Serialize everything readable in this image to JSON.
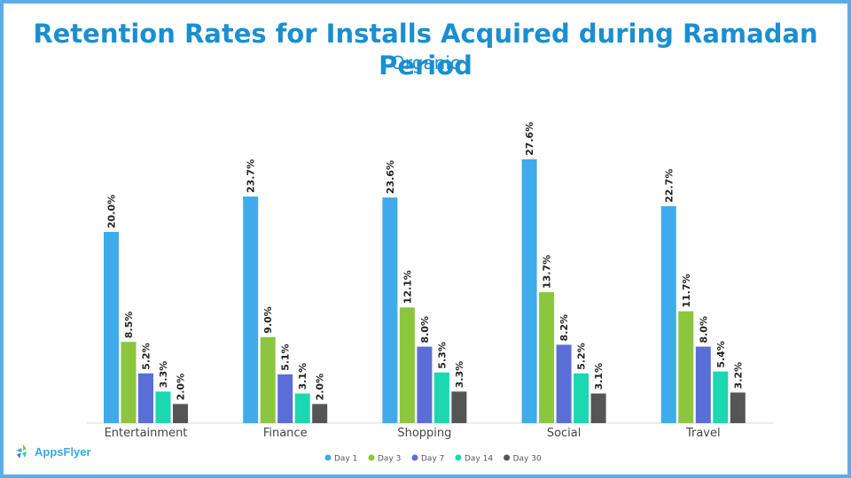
{
  "chart_data": {
    "type": "bar",
    "title": "Retention Rates for Installs Acquired during Ramadan Period",
    "subtitle": "Organic",
    "categories": [
      "Entertainment",
      "Finance",
      "Shopping",
      "Social",
      "Travel"
    ],
    "series": [
      {
        "name": "Day 1",
        "color": "#3fabea",
        "values": [
          20.0,
          23.7,
          23.6,
          27.6,
          22.7
        ]
      },
      {
        "name": "Day 3",
        "color": "#8cc63f",
        "values": [
          8.5,
          9.0,
          12.1,
          13.7,
          11.7
        ]
      },
      {
        "name": "Day 7",
        "color": "#5a6ed8",
        "values": [
          5.2,
          5.1,
          8.0,
          8.2,
          8.0
        ]
      },
      {
        "name": "Day 14",
        "color": "#1ad8b0",
        "values": [
          3.3,
          3.1,
          5.3,
          5.2,
          5.4
        ]
      },
      {
        "name": "Day 30",
        "color": "#555555",
        "values": [
          2.0,
          2.0,
          3.3,
          3.1,
          3.2
        ]
      }
    ],
    "value_format": "percent_one_decimal",
    "ylim": [
      0,
      30
    ],
    "grid": false,
    "legend": "bottom"
  },
  "logo": {
    "text": "AppsFlyer"
  }
}
